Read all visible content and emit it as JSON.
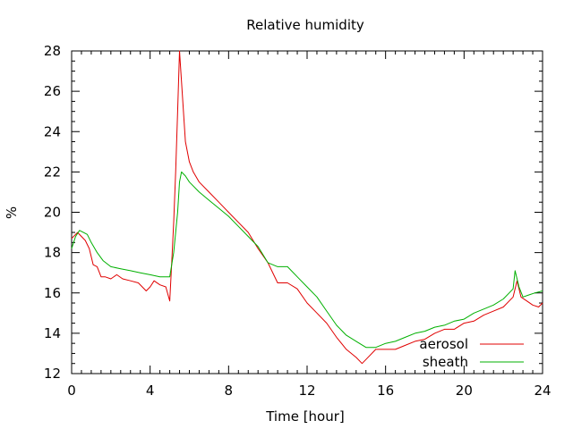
{
  "chart_data": {
    "type": "line",
    "title": "Relative humidity",
    "xlabel": "Time [hour]",
    "ylabel": "%",
    "xlim": [
      0,
      24
    ],
    "ylim": [
      12,
      28
    ],
    "xticks": [
      0,
      4,
      8,
      12,
      16,
      20,
      24
    ],
    "yticks": [
      12,
      14,
      16,
      18,
      20,
      22,
      24,
      26,
      28
    ],
    "grid": false,
    "legend_position": "bottom-right",
    "series": [
      {
        "name": "aerosol",
        "color": "#e00000",
        "x": [
          0.0,
          0.3,
          0.5,
          0.7,
          0.9,
          1.1,
          1.3,
          1.5,
          1.7,
          2.0,
          2.3,
          2.6,
          3.0,
          3.4,
          3.8,
          4.0,
          4.2,
          4.5,
          4.8,
          5.0,
          5.1,
          5.2,
          5.3,
          5.4,
          5.5,
          5.6,
          5.7,
          5.8,
          6.0,
          6.2,
          6.5,
          7.0,
          7.5,
          8.0,
          8.5,
          9.0,
          9.5,
          10.0,
          10.5,
          11.0,
          11.5,
          12.0,
          12.5,
          13.0,
          13.5,
          14.0,
          14.5,
          14.8,
          15.0,
          15.5,
          16.0,
          16.5,
          17.0,
          17.5,
          18.0,
          18.5,
          19.0,
          19.5,
          20.0,
          20.5,
          21.0,
          21.5,
          22.0,
          22.3,
          22.5,
          22.7,
          22.9,
          23.2,
          23.5,
          23.8,
          24.0
        ],
        "values": [
          18.7,
          19.0,
          18.8,
          18.6,
          18.2,
          17.4,
          17.3,
          16.8,
          16.8,
          16.7,
          16.9,
          16.7,
          16.6,
          16.5,
          16.1,
          16.3,
          16.6,
          16.4,
          16.3,
          15.6,
          17.5,
          19.5,
          22.0,
          25.0,
          28.0,
          26.5,
          25.0,
          23.5,
          22.5,
          22.0,
          21.5,
          21.0,
          20.5,
          20.0,
          19.5,
          19.0,
          18.2,
          17.5,
          16.5,
          16.5,
          16.2,
          15.5,
          15.0,
          14.5,
          13.8,
          13.2,
          12.8,
          12.5,
          12.7,
          13.2,
          13.2,
          13.2,
          13.4,
          13.6,
          13.7,
          14.0,
          14.2,
          14.2,
          14.5,
          14.6,
          14.9,
          15.1,
          15.3,
          15.6,
          15.8,
          16.6,
          15.8,
          15.6,
          15.4,
          15.3,
          15.5
        ]
      },
      {
        "name": "sheath",
        "color": "#00b000",
        "x": [
          0.0,
          0.2,
          0.4,
          0.6,
          0.8,
          1.0,
          1.3,
          1.6,
          2.0,
          2.5,
          3.0,
          3.5,
          4.0,
          4.5,
          5.0,
          5.2,
          5.4,
          5.5,
          5.6,
          5.8,
          6.0,
          6.5,
          7.0,
          7.5,
          8.0,
          8.5,
          9.0,
          9.5,
          10.0,
          10.5,
          11.0,
          11.5,
          12.0,
          12.5,
          13.0,
          13.5,
          14.0,
          14.5,
          15.0,
          15.5,
          16.0,
          16.5,
          17.0,
          17.5,
          18.0,
          18.5,
          19.0,
          19.5,
          20.0,
          20.5,
          21.0,
          21.5,
          22.0,
          22.3,
          22.5,
          22.6,
          22.8,
          23.0,
          23.3,
          23.6,
          24.0
        ],
        "values": [
          18.2,
          18.8,
          19.1,
          19.0,
          18.9,
          18.5,
          18.0,
          17.6,
          17.3,
          17.2,
          17.1,
          17.0,
          16.9,
          16.8,
          16.8,
          18.0,
          20.0,
          21.5,
          22.0,
          21.8,
          21.5,
          21.0,
          20.6,
          20.2,
          19.8,
          19.3,
          18.8,
          18.3,
          17.5,
          17.3,
          17.3,
          16.8,
          16.3,
          15.8,
          15.1,
          14.4,
          13.9,
          13.6,
          13.3,
          13.3,
          13.5,
          13.6,
          13.8,
          14.0,
          14.1,
          14.3,
          14.4,
          14.6,
          14.7,
          15.0,
          15.2,
          15.4,
          15.7,
          16.0,
          16.2,
          17.1,
          16.3,
          15.8,
          15.9,
          16.0,
          16.1
        ]
      }
    ]
  }
}
